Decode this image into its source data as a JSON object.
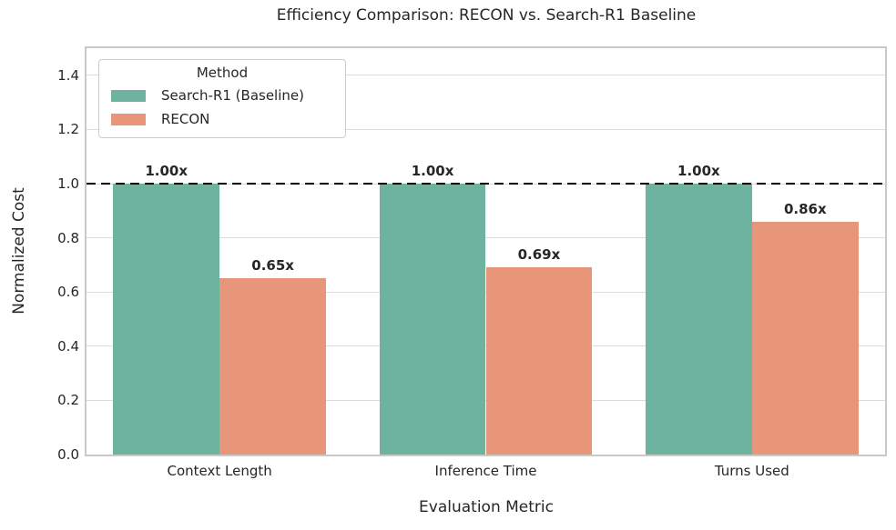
{
  "chart_data": {
    "type": "bar",
    "title": "Efficiency Comparison: RECON vs. Search-R1 Baseline",
    "xlabel": "Evaluation Metric",
    "ylabel": "Normalized Cost",
    "categories": [
      "Context Length",
      "Inference Time",
      "Turns Used"
    ],
    "series": [
      {
        "name": "Search-R1 (Baseline)",
        "color": "#6eb3a0",
        "values": [
          1.0,
          1.0,
          1.0
        ],
        "bar_labels": [
          "1.00x",
          "1.00x",
          "1.00x"
        ]
      },
      {
        "name": "RECON",
        "color": "#e8967a",
        "values": [
          0.65,
          0.69,
          0.86
        ],
        "bar_labels": [
          "0.65x",
          "0.69x",
          "0.86x"
        ]
      }
    ],
    "ylim": [
      0,
      1.5
    ],
    "yticks": [
      0.0,
      0.2,
      0.4,
      0.6,
      0.8,
      1.0,
      1.2,
      1.4
    ],
    "ytick_labels": [
      "0.0",
      "0.2",
      "0.4",
      "0.6",
      "0.8",
      "1.0",
      "1.2",
      "1.4"
    ],
    "reference_line": {
      "y": 1.0,
      "style": "dashed",
      "color": "#000000"
    },
    "legend": {
      "title": "Method",
      "position": "upper left"
    },
    "grid": true,
    "group_width_fraction": 0.8
  }
}
